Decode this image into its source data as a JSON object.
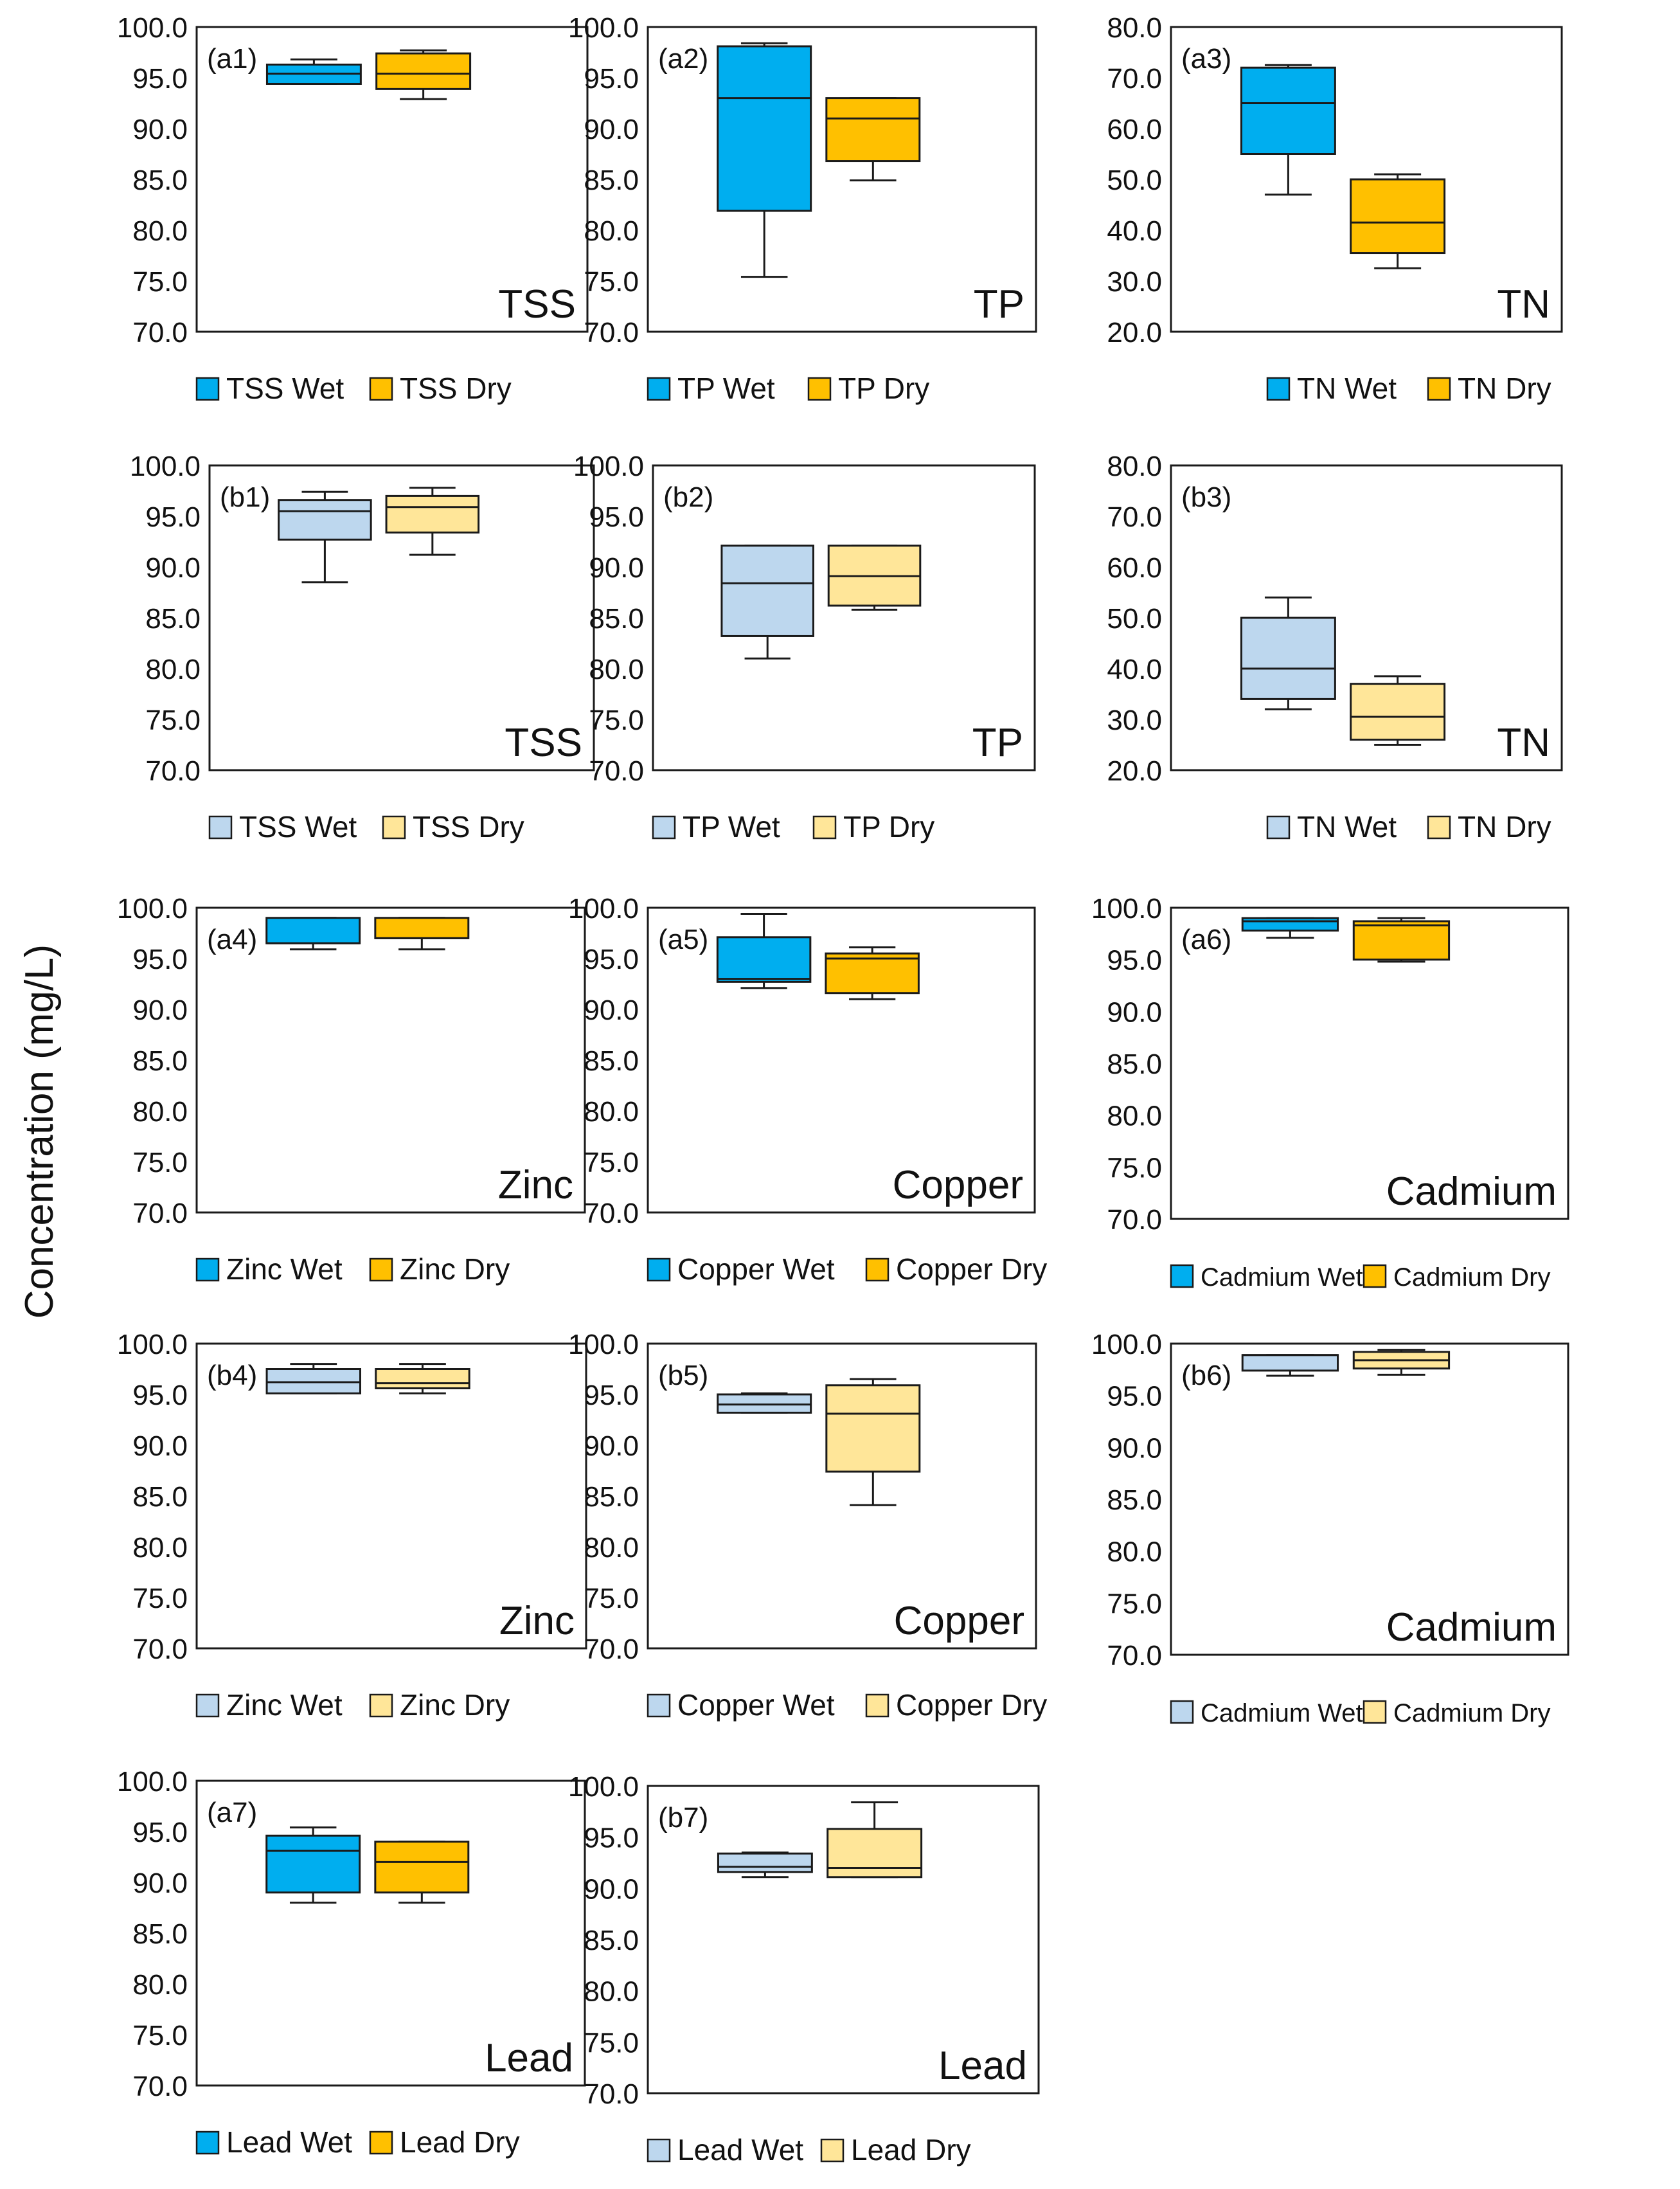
{
  "y_axis_title": "Concentration (mg/L)",
  "colors": {
    "wet_dark": "#00AEEF",
    "dry_dark": "#FFC000",
    "wet_light": "#BDD7EE",
    "dry_light": "#FFE699",
    "stroke": "#1a1a1a"
  },
  "chart_data": [
    {
      "type": "box",
      "panel": "(a1)",
      "name": "TSS",
      "ylim": [
        70,
        100
      ],
      "yticks": [
        "70.0",
        "75.0",
        "80.0",
        "85.0",
        "90.0",
        "95.0",
        "100.0"
      ],
      "shade": "dark",
      "legend": [
        "TSS Wet",
        "TSS Dry"
      ],
      "series": [
        {
          "name": "TSS Wet",
          "min": 94.4,
          "q1": 94.4,
          "median": 95.4,
          "q3": 96.3,
          "max": 96.8
        },
        {
          "name": "TSS Dry",
          "min": 92.9,
          "q1": 93.9,
          "median": 95.4,
          "q3": 97.4,
          "max": 97.7
        }
      ]
    },
    {
      "type": "box",
      "panel": "(a2)",
      "name": "TP",
      "ylim": [
        70,
        100
      ],
      "yticks": [
        "70.0",
        "75.0",
        "80.0",
        "85.0",
        "90.0",
        "95.0",
        "100.0"
      ],
      "shade": "dark",
      "legend": [
        "TP Wet",
        "TP Dry"
      ],
      "series": [
        {
          "name": "TP Wet",
          "min": 75.4,
          "q1": 81.9,
          "median": 93.0,
          "q3": 98.1,
          "max": 98.4
        },
        {
          "name": "TP Dry",
          "min": 84.9,
          "q1": 86.8,
          "median": 91.0,
          "q3": 93.0,
          "max": 93.0
        }
      ]
    },
    {
      "type": "box",
      "panel": "(a3)",
      "name": "TN",
      "ylim": [
        20,
        80
      ],
      "yticks": [
        "20.0",
        "30.0",
        "40.0",
        "50.0",
        "60.0",
        "70.0",
        "80.0"
      ],
      "shade": "dark",
      "legend": [
        "TN Wet",
        "TN Dry"
      ],
      "series": [
        {
          "name": "TN Wet",
          "min": 47.0,
          "q1": 55.0,
          "median": 65.0,
          "q3": 72.0,
          "max": 72.5
        },
        {
          "name": "TN Dry",
          "min": 32.5,
          "q1": 35.5,
          "median": 41.5,
          "q3": 50.0,
          "max": 51.0
        }
      ]
    },
    {
      "type": "box",
      "panel": "(b1)",
      "name": "TSS",
      "ylim": [
        70,
        100
      ],
      "yticks": [
        "70.0",
        "75.0",
        "80.0",
        "85.0",
        "90.0",
        "95.0",
        "100.0"
      ],
      "shade": "light",
      "legend": [
        "TSS Wet",
        "TSS Dry"
      ],
      "series": [
        {
          "name": "TSS Wet",
          "min": 88.5,
          "q1": 92.7,
          "median": 95.5,
          "q3": 96.6,
          "max": 97.4
        },
        {
          "name": "TSS Dry",
          "min": 91.2,
          "q1": 93.4,
          "median": 95.9,
          "q3": 97.0,
          "max": 97.8
        }
      ]
    },
    {
      "type": "box",
      "panel": "(b2)",
      "name": "TP",
      "ylim": [
        70,
        100
      ],
      "yticks": [
        "70.0",
        "75.0",
        "80.0",
        "85.0",
        "90.0",
        "95.0",
        "100.0"
      ],
      "shade": "light",
      "legend": [
        "TP Wet",
        "TP Dry"
      ],
      "series": [
        {
          "name": "TP Wet",
          "min": 81.0,
          "q1": 83.2,
          "median": 88.4,
          "q3": 92.1,
          "max": 92.1
        },
        {
          "name": "TP Dry",
          "min": 85.8,
          "q1": 86.2,
          "median": 89.1,
          "q3": 92.1,
          "max": 92.1
        }
      ]
    },
    {
      "type": "box",
      "panel": "(b3)",
      "name": "TN",
      "ylim": [
        20,
        80
      ],
      "yticks": [
        "20.0",
        "30.0",
        "40.0",
        "50.0",
        "60.0",
        "70.0",
        "80.0"
      ],
      "shade": "light",
      "legend": [
        "TN Wet",
        "TN Dry"
      ],
      "series": [
        {
          "name": "TN Wet",
          "min": 32.0,
          "q1": 34.0,
          "median": 40.0,
          "q3": 50.0,
          "max": 54.0
        },
        {
          "name": "TN Dry",
          "min": 25.0,
          "q1": 26.0,
          "median": 30.5,
          "q3": 37.0,
          "max": 38.5
        }
      ]
    },
    {
      "type": "box",
      "panel": "(a4)",
      "name": "Zinc",
      "ylim": [
        70,
        100
      ],
      "yticks": [
        "70.0",
        "75.0",
        "80.0",
        "85.0",
        "90.0",
        "95.0",
        "100.0"
      ],
      "shade": "dark",
      "legend": [
        "Zinc Wet",
        "Zinc Dry"
      ],
      "series": [
        {
          "name": "Zinc Wet",
          "min": 95.9,
          "q1": 96.5,
          "median": 96.5,
          "q3": 99.0,
          "max": 99.0
        },
        {
          "name": "Zinc Dry",
          "min": 95.9,
          "q1": 97.0,
          "median": 97.0,
          "q3": 99.0,
          "max": 99.0
        }
      ]
    },
    {
      "type": "box",
      "panel": "(a5)",
      "name": "Copper",
      "ylim": [
        70,
        100
      ],
      "yticks": [
        "70.0",
        "75.0",
        "80.0",
        "85.0",
        "90.0",
        "95.0",
        "100.0"
      ],
      "shade": "dark",
      "legend": [
        "Copper Wet",
        "Copper Dry"
      ],
      "series": [
        {
          "name": "Copper Wet",
          "min": 92.1,
          "q1": 92.7,
          "median": 93.0,
          "q3": 97.1,
          "max": 99.4
        },
        {
          "name": "Copper Dry",
          "min": 91.0,
          "q1": 91.6,
          "median": 95.0,
          "q3": 95.5,
          "max": 96.1
        }
      ]
    },
    {
      "type": "box",
      "panel": "(a6)",
      "name": "Cadmium",
      "ylim": [
        70,
        100
      ],
      "yticks": [
        "70.0",
        "75.0",
        "80.0",
        "85.0",
        "90.0",
        "95.0",
        "100.0"
      ],
      "shade": "dark",
      "legend": [
        "Cadmium Wet",
        "Cadmium Dry"
      ],
      "series": [
        {
          "name": "Cadmium Wet",
          "min": 97.1,
          "q1": 97.8,
          "median": 98.7,
          "q3": 99.0,
          "max": 99.0
        },
        {
          "name": "Cadmium Dry",
          "min": 94.8,
          "q1": 95.0,
          "median": 98.3,
          "q3": 98.7,
          "max": 99.0
        }
      ]
    },
    {
      "type": "box",
      "panel": "(b4)",
      "name": "Zinc",
      "ylim": [
        70,
        100
      ],
      "yticks": [
        "70.0",
        "75.0",
        "80.0",
        "85.0",
        "90.0",
        "95.0",
        "100.0"
      ],
      "shade": "light",
      "legend": [
        "Zinc Wet",
        "Zinc Dry"
      ],
      "series": [
        {
          "name": "Zinc Wet",
          "min": 95.1,
          "q1": 95.1,
          "median": 96.2,
          "q3": 97.5,
          "max": 98.0
        },
        {
          "name": "Zinc Dry",
          "min": 95.1,
          "q1": 95.6,
          "median": 96.1,
          "q3": 97.5,
          "max": 98.0
        }
      ]
    },
    {
      "type": "box",
      "panel": "(b5)",
      "name": "Copper",
      "ylim": [
        70,
        100
      ],
      "yticks": [
        "70.0",
        "75.0",
        "80.0",
        "85.0",
        "90.0",
        "95.0",
        "100.0"
      ],
      "shade": "light",
      "legend": [
        "Copper Wet",
        "Copper Dry"
      ],
      "series": [
        {
          "name": "Copper Wet",
          "min": 93.2,
          "q1": 93.2,
          "median": 94.0,
          "q3": 95.0,
          "max": 95.1
        },
        {
          "name": "Copper Dry",
          "min": 84.1,
          "q1": 87.4,
          "median": 93.1,
          "q3": 95.9,
          "max": 96.5
        }
      ]
    },
    {
      "type": "box",
      "panel": "(b6)",
      "name": "Cadmium",
      "ylim": [
        70,
        100
      ],
      "yticks": [
        "70.0",
        "75.0",
        "80.0",
        "85.0",
        "90.0",
        "95.0",
        "100.0"
      ],
      "shade": "light",
      "legend": [
        "Cadmium Wet",
        "Cadmium Dry"
      ],
      "series": [
        {
          "name": "Cadmium Wet",
          "min": 96.9,
          "q1": 97.4,
          "median": 98.9,
          "q3": 98.9,
          "max": 98.9
        },
        {
          "name": "Cadmium Dry",
          "min": 97.0,
          "q1": 97.6,
          "median": 98.4,
          "q3": 99.2,
          "max": 99.4
        }
      ]
    },
    {
      "type": "box",
      "panel": "(a7)",
      "name": "Lead",
      "ylim": [
        70,
        100
      ],
      "yticks": [
        "70.0",
        "75.0",
        "80.0",
        "85.0",
        "90.0",
        "95.0",
        "100.0"
      ],
      "shade": "dark",
      "legend": [
        "Lead Wet",
        "Lead Dry"
      ],
      "series": [
        {
          "name": "Lead Wet",
          "min": 88.0,
          "q1": 89.0,
          "median": 93.1,
          "q3": 94.6,
          "max": 95.4
        },
        {
          "name": "Lead Dry",
          "min": 88.0,
          "q1": 89.0,
          "median": 92.0,
          "q3": 94.0,
          "max": 94.0
        }
      ]
    },
    {
      "type": "box",
      "panel": "(b7)",
      "name": "Lead",
      "ylim": [
        70,
        100
      ],
      "yticks": [
        "70.0",
        "75.0",
        "80.0",
        "85.0",
        "90.0",
        "95.0",
        "100.0"
      ],
      "shade": "light",
      "legend": [
        "Lead Wet",
        "Lead Dry"
      ],
      "series": [
        {
          "name": "Lead Wet",
          "min": 91.1,
          "q1": 91.6,
          "median": 92.1,
          "q3": 93.4,
          "max": 93.5
        },
        {
          "name": "Lead Dry",
          "min": 91.1,
          "q1": 91.1,
          "median": 92.0,
          "q3": 95.8,
          "max": 98.4
        }
      ]
    }
  ]
}
